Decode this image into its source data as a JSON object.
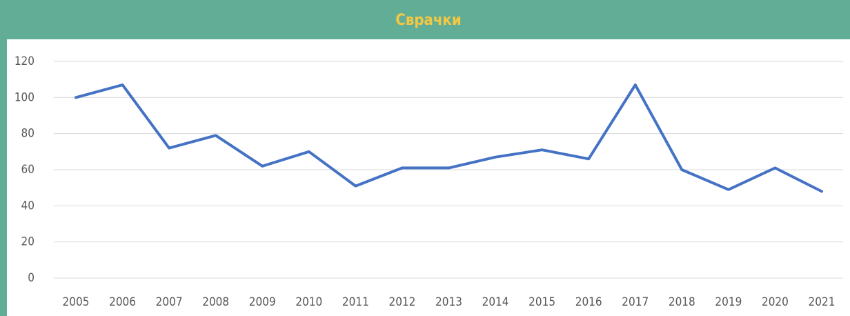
{
  "chart_data": {
    "type": "line",
    "title": "Сврачки",
    "categories": [
      "2005",
      "2006",
      "2007",
      "2008",
      "2009",
      "2010",
      "2011",
      "2012",
      "2013",
      "2014",
      "2015",
      "2016",
      "2017",
      "2018",
      "2019",
      "2020",
      "2021"
    ],
    "series": [
      {
        "color": "#4472c4",
        "values": [
          100,
          107,
          72,
          79,
          62,
          70,
          51,
          61,
          61,
          67,
          71,
          66,
          107,
          60,
          49,
          61,
          48
        ]
      }
    ],
    "ylim": [
      0,
      120
    ],
    "yticks": [
      0,
      20,
      40,
      60,
      80,
      100,
      120
    ],
    "grid": true
  }
}
